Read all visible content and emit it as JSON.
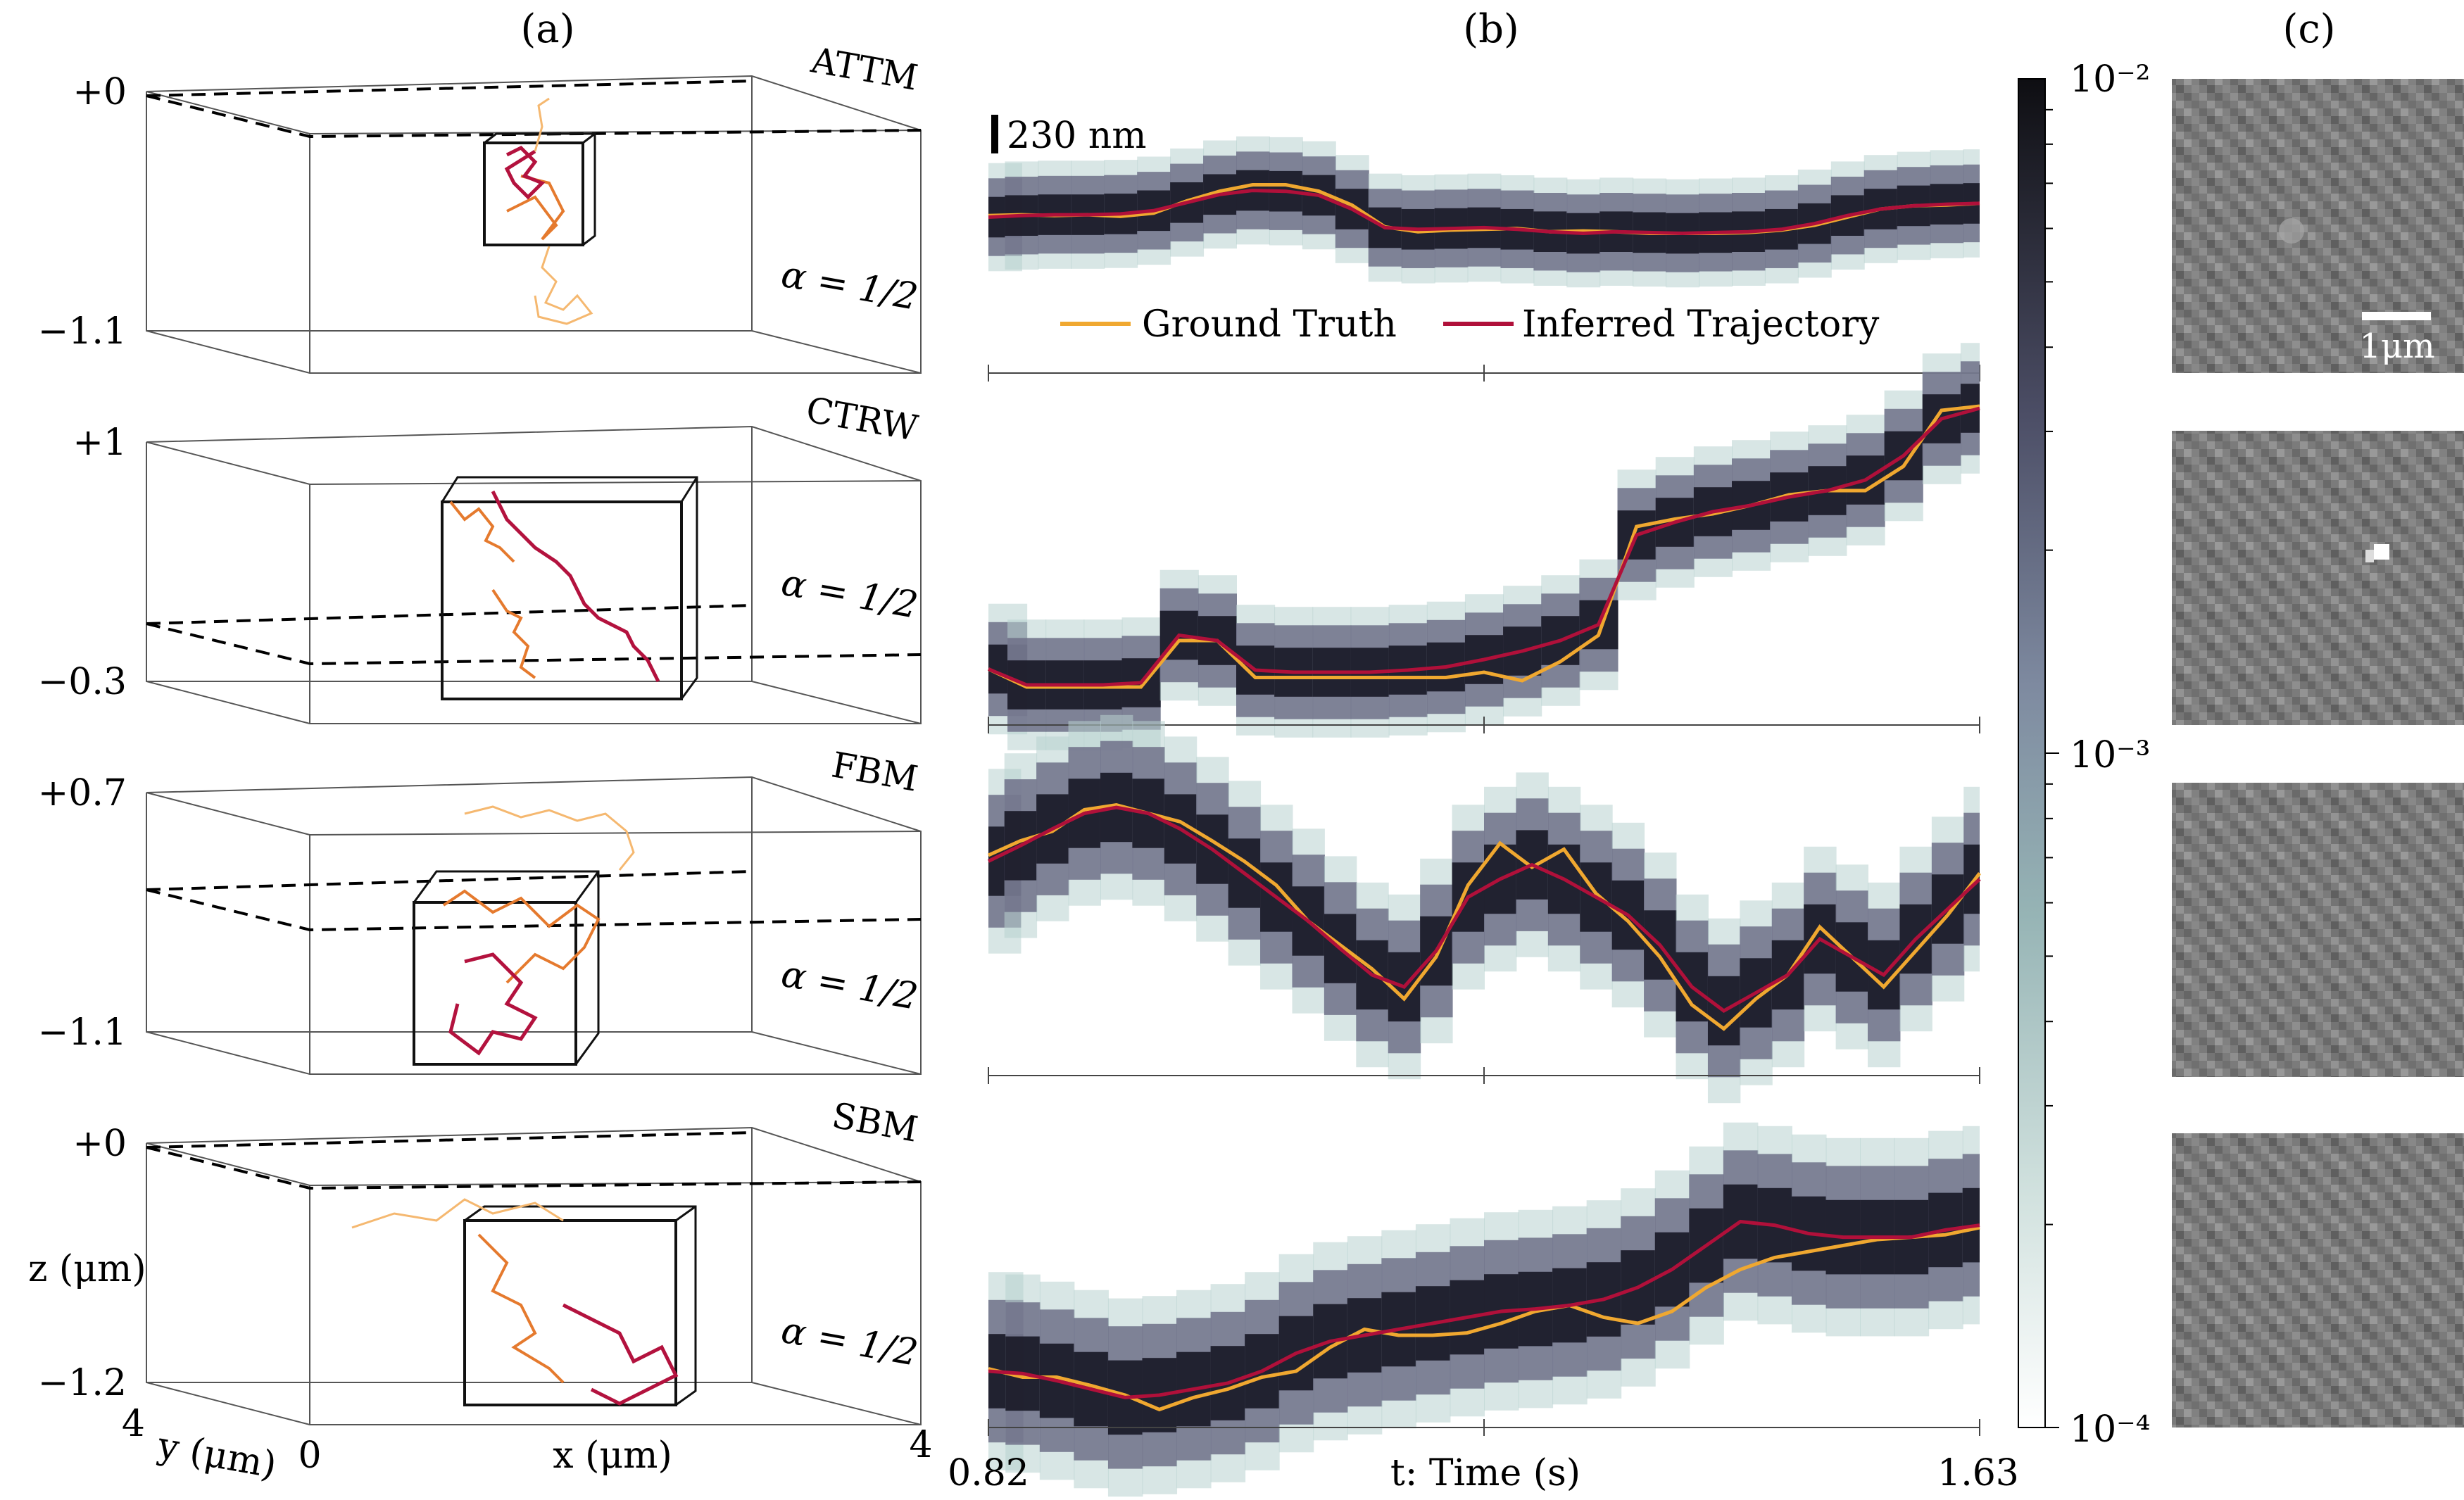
{
  "figure": {
    "panel_labels": [
      "(a)",
      "(b)",
      "(c)"
    ],
    "colors": {
      "ground_truth": "#f0a830",
      "inferred": "#b0103a",
      "traj_light": "#f5b870",
      "traj_mid": "#e57a2e",
      "traj_dark": "#b3123e",
      "heat_dark": "#1c1c2a",
      "heat_mid": "#6e7088",
      "heat_light": "#b8d2cf"
    }
  },
  "panel_a": {
    "rows": [
      {
        "model": "ATTM",
        "z_top": "+0",
        "z_bottom": "−1.1",
        "alpha": "α = 1/2"
      },
      {
        "model": "CTRW",
        "z_top": "+1",
        "z_bottom": "−0.3",
        "alpha": "α = 1/2"
      },
      {
        "model": "FBM",
        "z_top": "+0.7",
        "z_bottom": "−1.1",
        "alpha": "α = 1/2"
      },
      {
        "model": "SBM",
        "z_top": "+0",
        "z_bottom": "−1.2",
        "alpha": "α = 1/2"
      }
    ],
    "axes": {
      "z_label": "z (μm)",
      "y_label": "y (μm)",
      "x_label": "x (μm)",
      "y_max": "4",
      "origin": "0",
      "x_max": "4"
    }
  },
  "panel_b": {
    "scale_bar": "230 nm",
    "legend": [
      "Ground Truth",
      "Inferred Trajectory"
    ],
    "x_axis": {
      "label": "t: Time (s)",
      "min": "0.82",
      "max": "1.63"
    }
  },
  "colorbar": {
    "ticks": [
      "10⁻²",
      "10⁻³",
      "10⁻⁴"
    ],
    "scale": "log",
    "range": [
      0.0001,
      0.01
    ]
  },
  "panel_c": {
    "scale_bar": "1μm",
    "images": 4
  },
  "chart_data": [
    {
      "type": "line",
      "model": "ATTM",
      "x_range": [
        0.82,
        1.63
      ],
      "series": [
        {
          "name": "Ground Truth",
          "values": [
            0.12,
            0.13,
            0.12,
            0.13,
            0.11,
            0.15,
            0.3,
            0.42,
            0.5,
            0.5,
            0.42,
            0.25,
            -0.02,
            -0.08,
            -0.06,
            -0.05,
            -0.04,
            -0.08,
            -0.07,
            -0.08,
            -0.1,
            -0.1,
            -0.1,
            -0.09,
            -0.06,
            0.0,
            0.1,
            0.2,
            0.24,
            0.25,
            0.27
          ]
        },
        {
          "name": "Inferred Trajectory",
          "values": [
            0.1,
            0.12,
            0.13,
            0.13,
            0.14,
            0.18,
            0.28,
            0.38,
            0.43,
            0.42,
            0.37,
            0.2,
            -0.03,
            -0.05,
            -0.04,
            -0.03,
            -0.05,
            -0.08,
            -0.1,
            -0.08,
            -0.09,
            -0.1,
            -0.09,
            -0.08,
            -0.05,
            0.02,
            0.12,
            0.2,
            0.24,
            0.26,
            0.27
          ]
        }
      ]
    },
    {
      "type": "line",
      "model": "CTRW",
      "x_range": [
        0.82,
        1.63
      ],
      "series": [
        {
          "name": "Ground Truth",
          "values": [
            0.03,
            -0.14,
            -0.14,
            -0.14,
            -0.14,
            0.3,
            0.3,
            -0.05,
            -0.05,
            -0.05,
            -0.05,
            -0.05,
            -0.05,
            0.0,
            -0.08,
            0.1,
            0.35,
            1.38,
            1.45,
            1.5,
            1.58,
            1.68,
            1.72,
            1.72,
            1.95,
            2.48,
            2.52
          ]
        },
        {
          "name": "Inferred Trajectory",
          "values": [
            0.03,
            -0.12,
            -0.12,
            -0.12,
            -0.1,
            0.35,
            0.3,
            0.02,
            0.0,
            0.0,
            0.0,
            0.02,
            0.05,
            0.12,
            0.2,
            0.3,
            0.45,
            1.3,
            1.42,
            1.52,
            1.58,
            1.66,
            1.72,
            1.82,
            2.05,
            2.4,
            2.5
          ]
        }
      ]
    },
    {
      "type": "line",
      "model": "FBM",
      "x_range": [
        0.82,
        1.63
      ],
      "series": [
        {
          "name": "Ground Truth",
          "values": [
            0.5,
            0.62,
            0.7,
            0.88,
            0.92,
            0.85,
            0.78,
            0.62,
            0.45,
            0.25,
            -0.05,
            -0.25,
            -0.45,
            -0.7,
            -0.35,
            0.25,
            0.6,
            0.4,
            0.55,
            0.18,
            -0.05,
            -0.35,
            -0.75,
            -0.95,
            -0.7,
            -0.5,
            -0.1,
            -0.35,
            -0.6,
            -0.3,
            0.0,
            0.35
          ]
        },
        {
          "name": "Inferred Trajectory",
          "values": [
            0.45,
            0.58,
            0.72,
            0.85,
            0.9,
            0.85,
            0.72,
            0.55,
            0.35,
            0.15,
            -0.05,
            -0.28,
            -0.5,
            -0.6,
            -0.3,
            0.15,
            0.3,
            0.42,
            0.3,
            0.15,
            0.0,
            -0.25,
            -0.6,
            -0.8,
            -0.65,
            -0.5,
            -0.2,
            -0.35,
            -0.5,
            -0.2,
            0.05,
            0.3
          ]
        }
      ]
    },
    {
      "type": "line",
      "model": "SBM",
      "x_range": [
        0.82,
        1.63
      ],
      "series": [
        {
          "name": "Ground Truth",
          "values": [
            -0.38,
            -0.45,
            -0.45,
            -0.52,
            -0.6,
            -0.72,
            -0.62,
            -0.55,
            -0.45,
            -0.4,
            -0.2,
            -0.05,
            -0.1,
            -0.1,
            -0.08,
            0.0,
            0.1,
            0.15,
            0.05,
            0.0,
            0.1,
            0.3,
            0.45,
            0.55,
            0.6,
            0.65,
            0.7,
            0.72,
            0.74,
            0.8
          ]
        },
        {
          "name": "Inferred Trajectory",
          "values": [
            -0.4,
            -0.42,
            -0.48,
            -0.55,
            -0.62,
            -0.6,
            -0.55,
            -0.5,
            -0.4,
            -0.25,
            -0.15,
            -0.1,
            -0.05,
            0.0,
            0.05,
            0.1,
            0.12,
            0.15,
            0.2,
            0.3,
            0.45,
            0.65,
            0.85,
            0.82,
            0.75,
            0.72,
            0.72,
            0.72,
            0.78,
            0.82
          ]
        }
      ]
    }
  ]
}
